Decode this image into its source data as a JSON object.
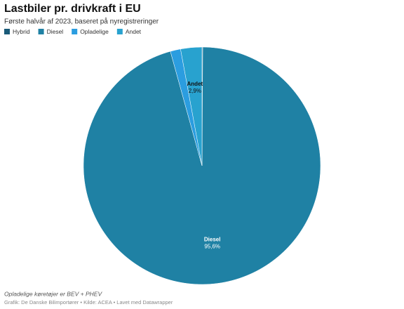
{
  "chart_data": {
    "type": "pie",
    "title": "Lastbiler pr. drivkraft i EU",
    "subtitle": "Første halvår af 2023, baseret på nyregistreringer",
    "categories": [
      "Hybrid",
      "Diesel",
      "Opladelige",
      "Andet"
    ],
    "values": [
      0.1,
      95.6,
      1.4,
      2.9
    ],
    "value_labels": [
      null,
      "95,6%",
      null,
      "2,9%"
    ],
    "colors": [
      "#1a5a78",
      "#1f81a4",
      "#2b9de0",
      "#28a2cf"
    ],
    "note": "Opladelige køretøjer er BEV + PHEV",
    "footer": "Grafik: De Danske Bilimportører • Kilde: ACEA • Lavet med Datawrapper"
  }
}
